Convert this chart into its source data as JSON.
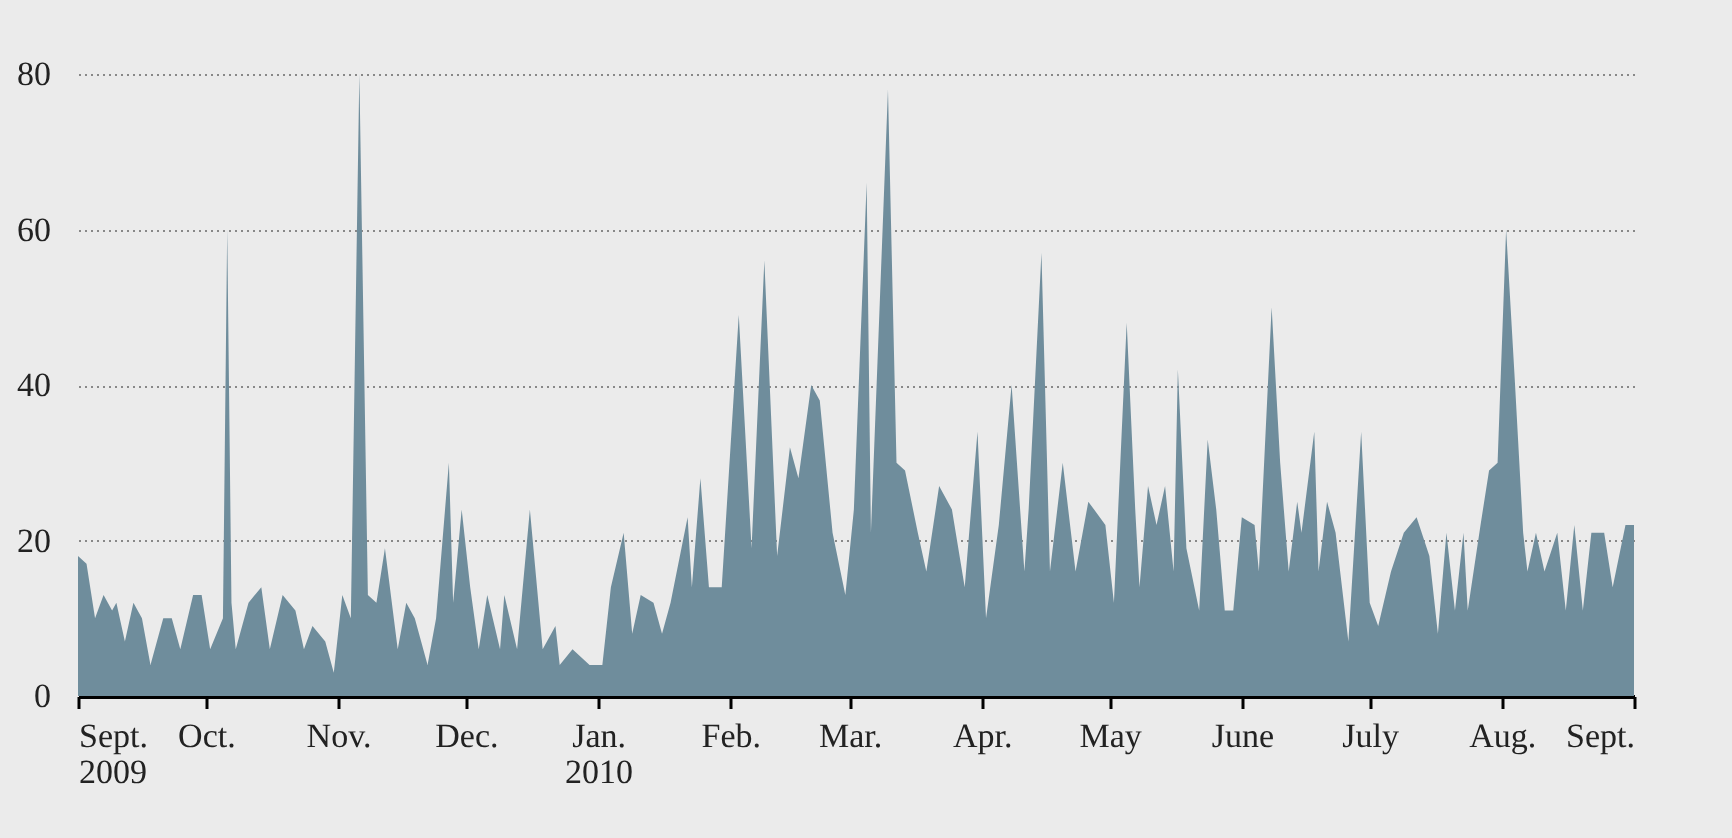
{
  "chart_data": {
    "type": "area",
    "x": [
      "2009-09-01",
      "2009-09-03",
      "2009-09-05",
      "2009-09-07",
      "2009-09-09",
      "2009-09-10",
      "2009-09-12",
      "2009-09-14",
      "2009-09-16",
      "2009-09-18",
      "2009-09-21",
      "2009-09-23",
      "2009-09-25",
      "2009-09-28",
      "2009-09-30",
      "2009-10-02",
      "2009-10-05",
      "2009-10-06",
      "2009-10-07",
      "2009-10-08",
      "2009-10-11",
      "2009-10-14",
      "2009-10-16",
      "2009-10-19",
      "2009-10-22",
      "2009-10-24",
      "2009-10-26",
      "2009-10-29",
      "2009-10-31",
      "2009-11-02",
      "2009-11-04",
      "2009-11-06",
      "2009-11-08",
      "2009-11-10",
      "2009-11-12",
      "2009-11-15",
      "2009-11-17",
      "2009-11-19",
      "2009-11-22",
      "2009-11-24",
      "2009-11-27",
      "2009-11-28",
      "2009-11-30",
      "2009-12-02",
      "2009-12-04",
      "2009-12-06",
      "2009-12-09",
      "2009-12-10",
      "2009-12-13",
      "2009-12-16",
      "2009-12-19",
      "2009-12-22",
      "2009-12-23",
      "2009-12-26",
      "2009-12-30",
      "2010-01-02",
      "2010-01-04",
      "2010-01-07",
      "2010-01-09",
      "2010-01-11",
      "2010-01-14",
      "2010-01-16",
      "2010-01-18",
      "2010-01-22",
      "2010-01-23",
      "2010-01-25",
      "2010-01-27",
      "2010-01-30",
      "2010-02-03",
      "2010-02-06",
      "2010-02-09",
      "2010-02-12",
      "2010-02-15",
      "2010-02-17",
      "2010-02-20",
      "2010-02-22",
      "2010-02-25",
      "2010-02-28",
      "2010-03-02",
      "2010-03-05",
      "2010-03-06",
      "2010-03-10",
      "2010-03-12",
      "2010-03-14",
      "2010-03-17",
      "2010-03-19",
      "2010-03-22",
      "2010-03-25",
      "2010-03-28",
      "2010-03-31",
      "2010-04-02",
      "2010-04-05",
      "2010-04-08",
      "2010-04-11",
      "2010-04-12",
      "2010-04-15",
      "2010-04-17",
      "2010-04-20",
      "2010-04-23",
      "2010-04-26",
      "2010-04-30",
      "2010-05-02",
      "2010-05-05",
      "2010-05-07",
      "2010-05-08",
      "2010-05-10",
      "2010-05-12",
      "2010-05-14",
      "2010-05-16",
      "2010-05-17",
      "2010-05-19",
      "2010-05-22",
      "2010-05-24",
      "2010-05-26",
      "2010-05-28",
      "2010-05-30",
      "2010-06-01",
      "2010-06-04",
      "2010-06-05",
      "2010-06-08",
      "2010-06-10",
      "2010-06-12",
      "2010-06-14",
      "2010-06-15",
      "2010-06-18",
      "2010-06-19",
      "2010-06-21",
      "2010-06-23",
      "2010-06-26",
      "2010-06-29",
      "2010-07-01",
      "2010-07-03",
      "2010-07-06",
      "2010-07-09",
      "2010-07-12",
      "2010-07-15",
      "2010-07-17",
      "2010-07-19",
      "2010-07-21",
      "2010-07-23",
      "2010-07-24",
      "2010-07-27",
      "2010-07-29",
      "2010-07-31",
      "2010-08-02",
      "2010-08-04",
      "2010-08-06",
      "2010-08-07",
      "2010-08-09",
      "2010-08-11",
      "2010-08-14",
      "2010-08-16",
      "2010-08-18",
      "2010-08-20",
      "2010-08-22",
      "2010-08-25",
      "2010-08-27",
      "2010-08-30",
      "2010-09-01"
    ],
    "series": [
      {
        "color": "#6f8d9c",
        "values": [
          18,
          17,
          10,
          13,
          11,
          12,
          7,
          12,
          10,
          4,
          10,
          10,
          6,
          13,
          13,
          6,
          10,
          60,
          12,
          6,
          12,
          14,
          6,
          13,
          11,
          6,
          9,
          7,
          3,
          13,
          10,
          80,
          13,
          12,
          19,
          6,
          12,
          10,
          4,
          10,
          30,
          12,
          24,
          14,
          6,
          13,
          6,
          13,
          6,
          24,
          6,
          9,
          4,
          6,
          4,
          4,
          14,
          21,
          8,
          13,
          12,
          8,
          12,
          23,
          14,
          28,
          14,
          14,
          49,
          19,
          56,
          18,
          32,
          28,
          40,
          38,
          21,
          13,
          24,
          66,
          21,
          78,
          30,
          29,
          21,
          16,
          27,
          24,
          14,
          34,
          10,
          22,
          40,
          16,
          24,
          57,
          16,
          30,
          16,
          25,
          22,
          12,
          48,
          24,
          14,
          27,
          22,
          27,
          16,
          42,
          19,
          11,
          33,
          24,
          11,
          11,
          23,
          22,
          16,
          50,
          30,
          16,
          25,
          21,
          34,
          16,
          25,
          21,
          7,
          34,
          12,
          9,
          16,
          21,
          23,
          18,
          8,
          21,
          11,
          21,
          11,
          22,
          29,
          30,
          60,
          41,
          21,
          16,
          21,
          16,
          21,
          11,
          22,
          11,
          21,
          21,
          14,
          22,
          22
        ]
      }
    ],
    "xlim": [
      "2009-09-01",
      "2010-09-01"
    ],
    "xticks": [
      {
        "value": "2009-09-01",
        "label": "Sept. 2009"
      },
      {
        "value": "2009-10-01",
        "label": "Oct."
      },
      {
        "value": "2009-11-01",
        "label": "Nov."
      },
      {
        "value": "2009-12-01",
        "label": "Dec."
      },
      {
        "value": "2010-01-01",
        "label": "Jan. 2010"
      },
      {
        "value": "2010-02-01",
        "label": "Feb."
      },
      {
        "value": "2010-03-01",
        "label": "Mar."
      },
      {
        "value": "2010-04-01",
        "label": "Apr."
      },
      {
        "value": "2010-05-01",
        "label": "May"
      },
      {
        "value": "2010-06-01",
        "label": "June"
      },
      {
        "value": "2010-07-01",
        "label": "July"
      },
      {
        "value": "2010-08-01",
        "label": "Aug."
      },
      {
        "value": "2010-09-01",
        "label": "Sept."
      }
    ],
    "ylim": [
      0,
      80
    ],
    "yticks": [
      0,
      20,
      40,
      60,
      80
    ],
    "grid": "y"
  }
}
